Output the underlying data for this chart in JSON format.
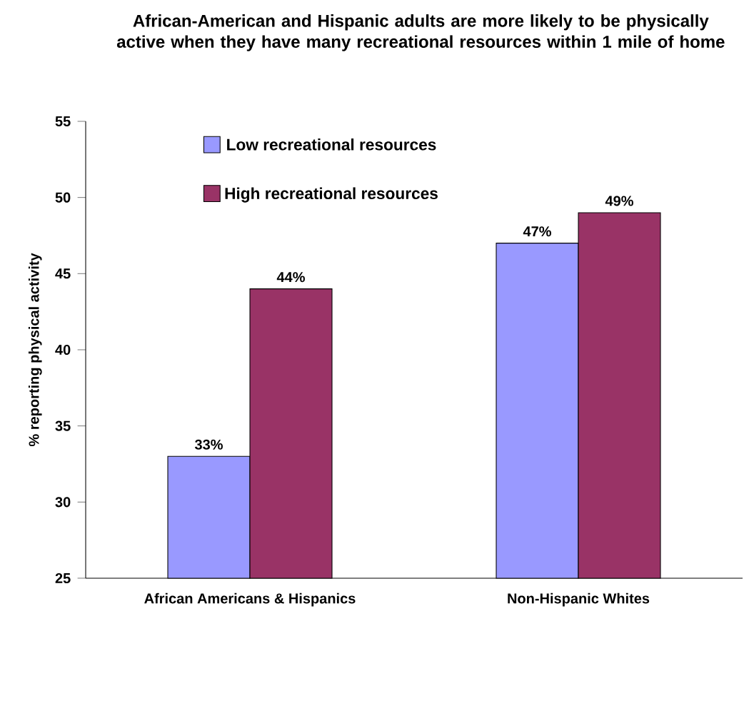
{
  "chart_data": {
    "type": "bar",
    "title": "African-American and Hispanic adults are more likely to be physically active when they have many recreational resources within 1 mile of home",
    "ylabel": "% reporting physical activity",
    "categories": [
      "African Americans & Hispanics",
      "Non-Hispanic Whites"
    ],
    "series": [
      {
        "name": "Low recreational resources",
        "color": "#9999ff",
        "values": [
          33,
          47
        ],
        "value_labels": [
          "33%",
          "47%"
        ]
      },
      {
        "name": "High recreational resources",
        "color": "#993366",
        "values": [
          44,
          49
        ],
        "value_labels": [
          "44%",
          "49%"
        ]
      }
    ],
    "ylim": [
      25,
      55
    ],
    "yticks": [
      25,
      30,
      35,
      40,
      45,
      50,
      55
    ],
    "grid": false,
    "legend": "top left"
  }
}
